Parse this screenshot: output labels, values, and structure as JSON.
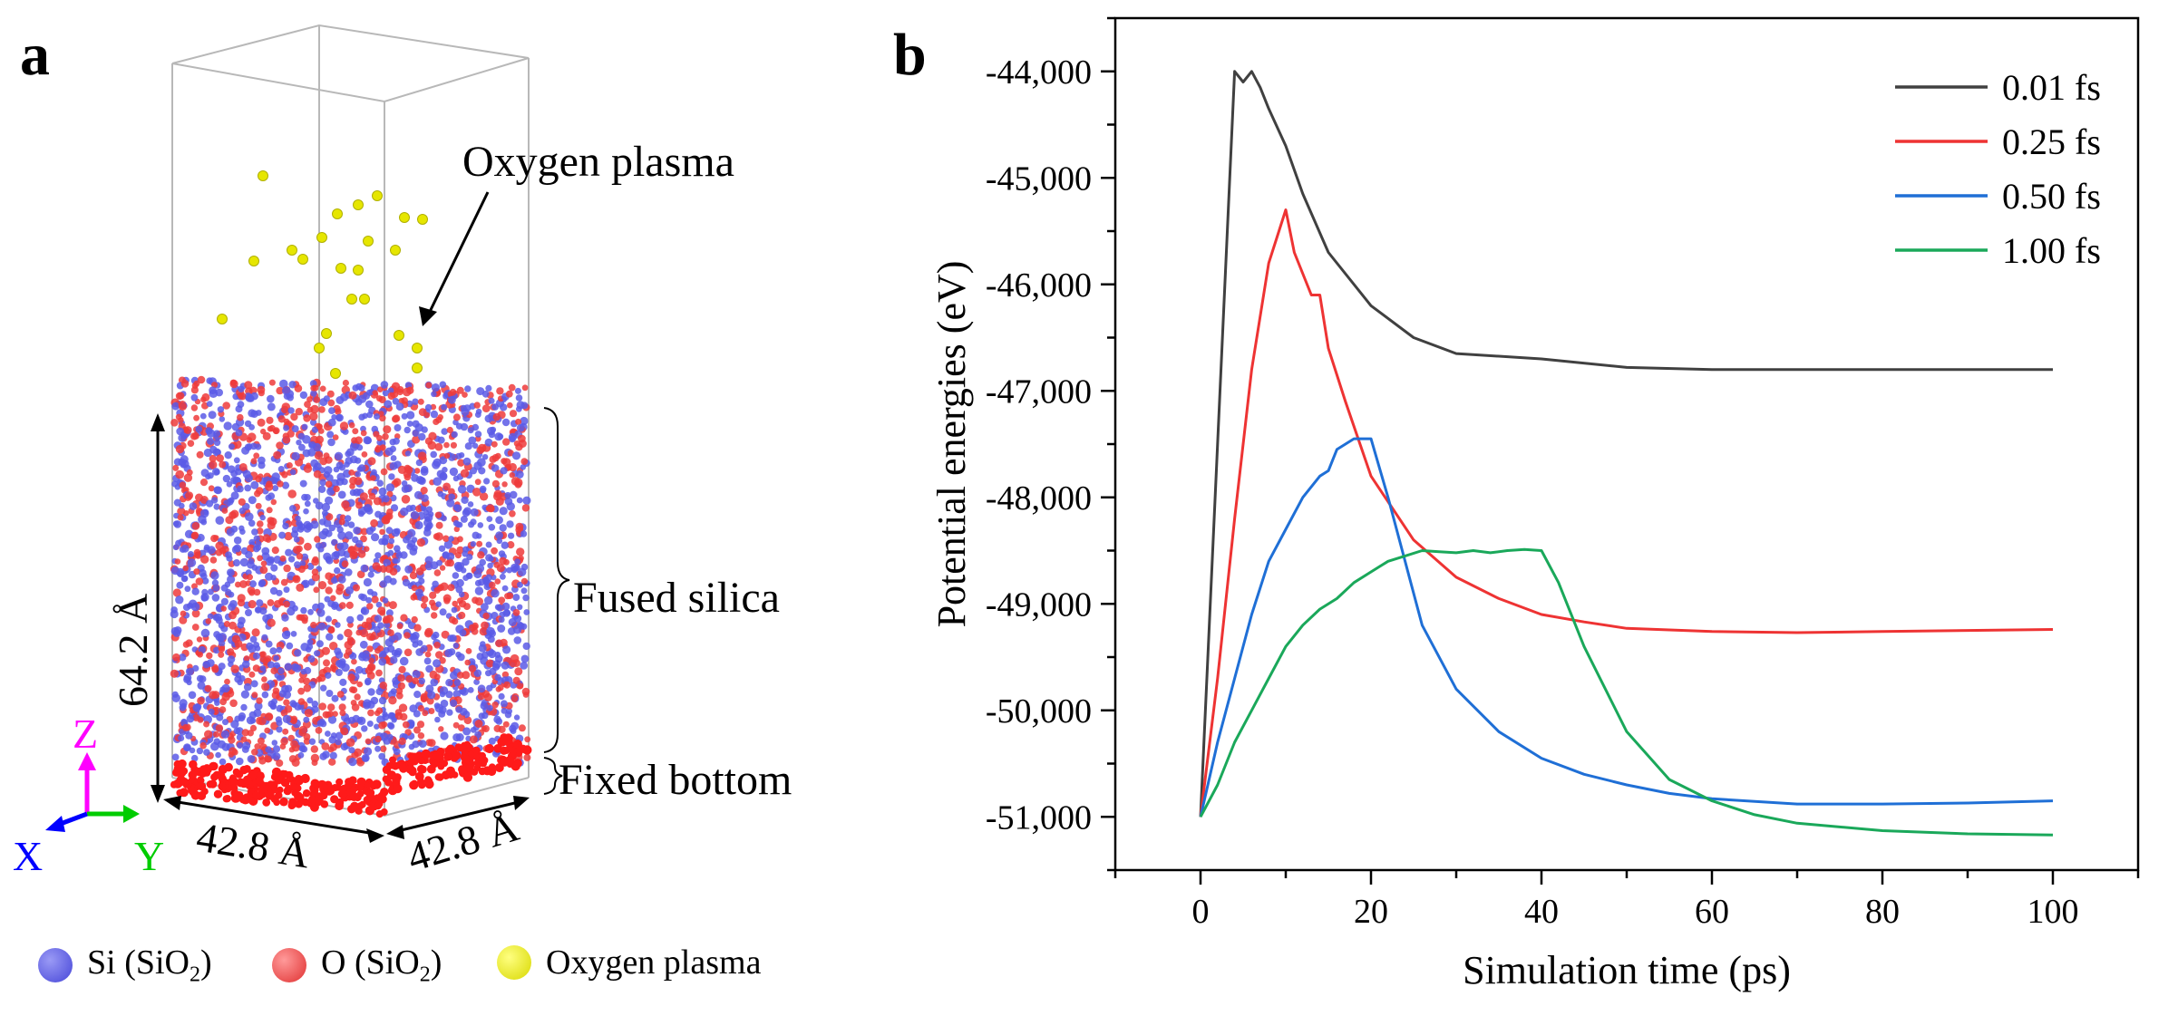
{
  "panel_a": {
    "label": "a",
    "annotations": {
      "oxygen_plasma": "Oxygen plasma",
      "fused_silica": "Fused silica",
      "fixed_bottom": "Fixed bottom",
      "height": "64.2 Å",
      "width_x": "42.8 Å",
      "width_y": "42.8 Å"
    },
    "axes": {
      "z": "Z",
      "x": "X",
      "y": "Y"
    },
    "axis_colors": {
      "z": "#ff00ff",
      "x": "#0000ff",
      "y": "#00cc00"
    },
    "atom_colors": {
      "si": "#5a5ae6",
      "o": "#ee3b3b",
      "plasma": "#e6e600"
    },
    "legend": [
      {
        "label": "Si (SiO",
        "sub": "2",
        "tail": ")",
        "color": "#5a5ae6"
      },
      {
        "label": "O (SiO",
        "sub": "2",
        "tail": ")",
        "color": "#ee4444"
      },
      {
        "label": "Oxygen plasma",
        "sub": "",
        "tail": "",
        "color": "#e6e600"
      }
    ]
  },
  "panel_b": {
    "label": "b"
  },
  "chart_data": {
    "type": "line",
    "xlabel": "Simulation time (ps)",
    "ylabel": "Potential energies (eV)",
    "xlim": [
      -10,
      110
    ],
    "ylim": [
      -51500,
      -43500
    ],
    "xticks": [
      0,
      20,
      40,
      60,
      80,
      100
    ],
    "xtick_labels": [
      "0",
      "20",
      "40",
      "60",
      "80",
      "100"
    ],
    "yticks": [
      -44000,
      -45000,
      -46000,
      -47000,
      -48000,
      -49000,
      -50000,
      -51000
    ],
    "ytick_labels": [
      "-44,000",
      "-45,000",
      "-46,000",
      "-47,000",
      "-48,000",
      "-49,000",
      "-50,000",
      "-51,000"
    ],
    "legend_position": "top-right",
    "series": [
      {
        "name": "0.01 fs",
        "color": "#404040",
        "x": [
          0,
          2,
          4,
          5,
          6,
          7,
          8,
          10,
          12,
          15,
          20,
          25,
          30,
          40,
          50,
          60,
          70,
          80,
          90,
          100
        ],
        "y": [
          -51000,
          -47500,
          -44000,
          -44100,
          -44000,
          -44150,
          -44350,
          -44700,
          -45150,
          -45700,
          -46200,
          -46500,
          -46650,
          -46700,
          -46780,
          -46800,
          -46800,
          -46800,
          -46800,
          -46800
        ]
      },
      {
        "name": "0.25 fs",
        "color": "#ee3333",
        "x": [
          0,
          2,
          4,
          6,
          8,
          10,
          11,
          13,
          14,
          15,
          17,
          20,
          25,
          30,
          35,
          40,
          45,
          50,
          60,
          70,
          80,
          90,
          100
        ],
        "y": [
          -51000,
          -49700,
          -48200,
          -46800,
          -45800,
          -45300,
          -45700,
          -46100,
          -46100,
          -46600,
          -47100,
          -47800,
          -48400,
          -48750,
          -48950,
          -49100,
          -49170,
          -49230,
          -49260,
          -49270,
          -49260,
          -49250,
          -49240
        ]
      },
      {
        "name": "0.50 fs",
        "color": "#1f6fd6",
        "x": [
          0,
          2,
          4,
          6,
          8,
          10,
          12,
          14,
          15,
          16,
          17,
          18,
          19,
          20,
          22,
          24,
          26,
          30,
          35,
          40,
          45,
          50,
          55,
          60,
          70,
          80,
          90,
          100
        ],
        "y": [
          -51000,
          -50300,
          -49700,
          -49100,
          -48600,
          -48300,
          -48000,
          -47800,
          -47750,
          -47550,
          -47500,
          -47450,
          -47450,
          -47450,
          -48000,
          -48600,
          -49200,
          -49800,
          -50200,
          -50450,
          -50600,
          -50700,
          -50780,
          -50830,
          -50880,
          -50880,
          -50870,
          -50850
        ]
      },
      {
        "name": "1.00 fs",
        "color": "#1aa85a",
        "x": [
          0,
          2,
          4,
          6,
          8,
          10,
          12,
          14,
          16,
          18,
          20,
          22,
          24,
          26,
          28,
          30,
          32,
          34,
          36,
          38,
          40,
          42,
          45,
          50,
          55,
          60,
          65,
          70,
          80,
          90,
          100
        ],
        "y": [
          -51000,
          -50700,
          -50300,
          -50000,
          -49700,
          -49400,
          -49200,
          -49050,
          -48950,
          -48800,
          -48700,
          -48600,
          -48550,
          -48500,
          -48510,
          -48520,
          -48500,
          -48520,
          -48500,
          -48490,
          -48500,
          -48800,
          -49400,
          -50200,
          -50650,
          -50850,
          -50980,
          -51060,
          -51130,
          -51160,
          -51170
        ]
      }
    ]
  }
}
